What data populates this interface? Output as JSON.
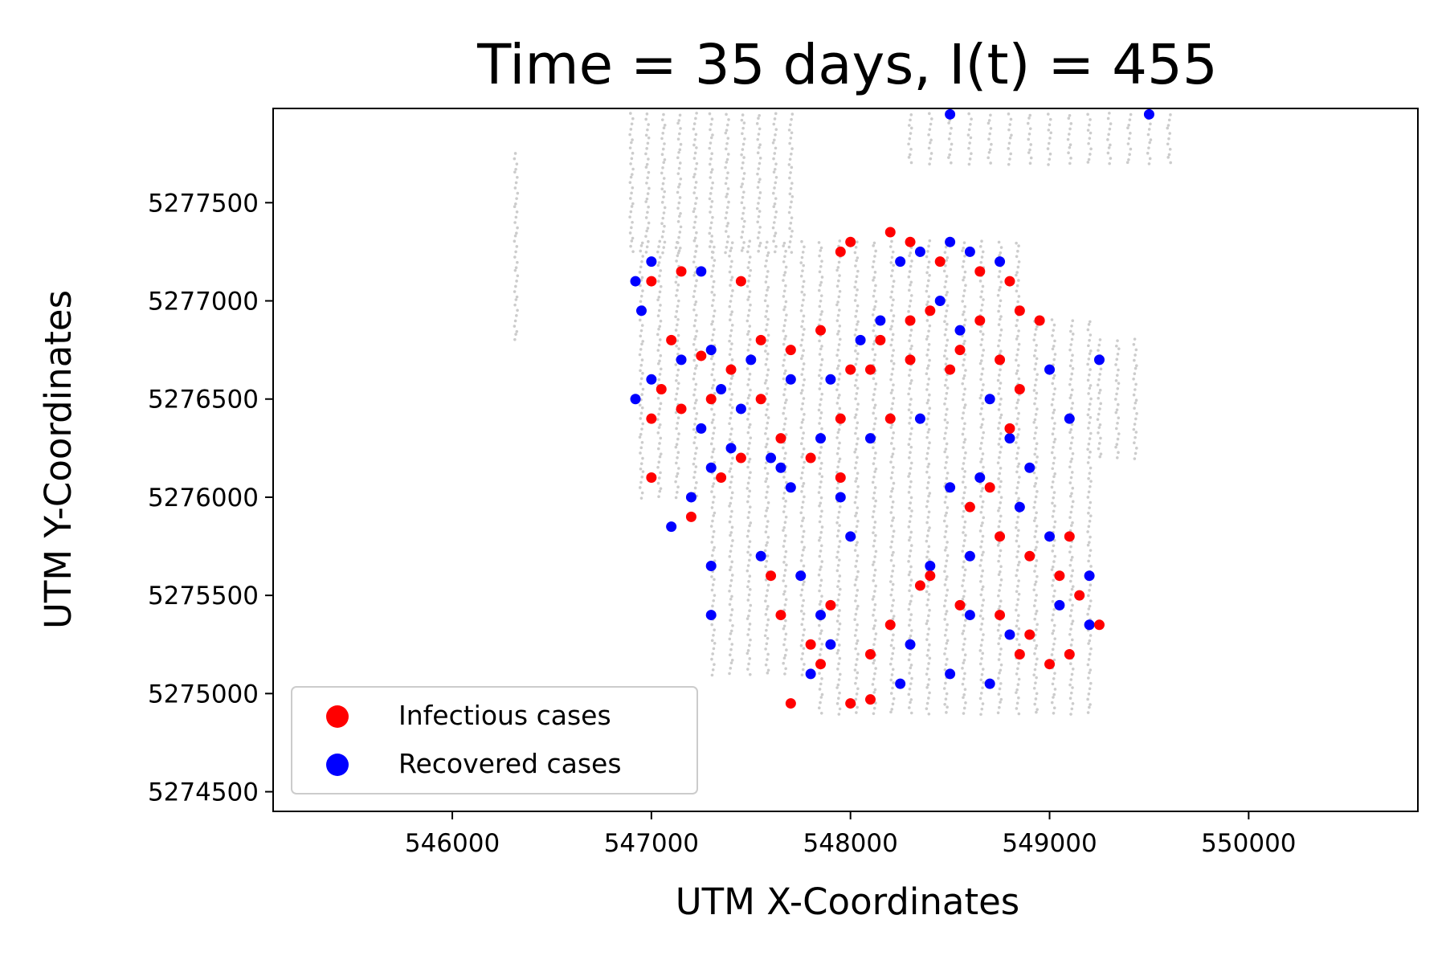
{
  "chart_data": {
    "type": "scatter",
    "title": "Time = 35 days, I(t) = 455",
    "xlabel": "UTM X-Coordinates",
    "ylabel": "UTM Y-Coordinates",
    "xlim": [
      545100,
      550850
    ],
    "ylim": [
      5274400,
      5277980
    ],
    "x_ticks": [
      546000,
      547000,
      548000,
      549000,
      550000
    ],
    "x_tick_labels": [
      "546000",
      "547000",
      "548000",
      "549000",
      "550000"
    ],
    "y_ticks": [
      5274500,
      5275000,
      5275500,
      5276000,
      5276500,
      5277000,
      5277500
    ],
    "y_tick_labels": [
      "5274500",
      "5275000",
      "5275500",
      "5276000",
      "5276500",
      "5277000",
      "5277500"
    ],
    "grid": false,
    "legend_position": "bottom-left",
    "colors": {
      "background_points": "#cccccc",
      "infectious": "#ff0000",
      "recovered": "#0000ff"
    },
    "series": [
      {
        "name": "Infectious cases",
        "color": "#ff0000",
        "points": [
          [
            547000,
            5277100
          ],
          [
            547150,
            5277150
          ],
          [
            547450,
            5277100
          ],
          [
            547100,
            5276800
          ],
          [
            547250,
            5276720
          ],
          [
            547400,
            5276650
          ],
          [
            547550,
            5276500
          ],
          [
            547650,
            5276300
          ],
          [
            547800,
            5276200
          ],
          [
            547450,
            5276200
          ],
          [
            547350,
            5276100
          ],
          [
            547000,
            5276100
          ],
          [
            547200,
            5275900
          ],
          [
            547600,
            5275600
          ],
          [
            547650,
            5275400
          ],
          [
            547900,
            5275450
          ],
          [
            547800,
            5275250
          ],
          [
            547700,
            5274950
          ],
          [
            547850,
            5275150
          ],
          [
            548100,
            5275200
          ],
          [
            548100,
            5274970
          ],
          [
            548200,
            5275350
          ],
          [
            548350,
            5275550
          ],
          [
            547950,
            5276100
          ],
          [
            547950,
            5276400
          ],
          [
            548000,
            5276650
          ],
          [
            548150,
            5276800
          ],
          [
            548300,
            5276900
          ],
          [
            548400,
            5276950
          ],
          [
            548550,
            5276750
          ],
          [
            548750,
            5276700
          ],
          [
            548850,
            5276550
          ],
          [
            548800,
            5276350
          ],
          [
            548700,
            5276050
          ],
          [
            548600,
            5275950
          ],
          [
            548750,
            5275800
          ],
          [
            548900,
            5275700
          ],
          [
            549050,
            5275600
          ],
          [
            549150,
            5275500
          ],
          [
            549250,
            5275350
          ],
          [
            549100,
            5275200
          ],
          [
            548900,
            5275300
          ],
          [
            548750,
            5275400
          ],
          [
            548550,
            5275450
          ],
          [
            548400,
            5275600
          ],
          [
            548850,
            5275200
          ],
          [
            549000,
            5275150
          ],
          [
            547950,
            5277250
          ],
          [
            548000,
            5277300
          ],
          [
            548200,
            5277350
          ],
          [
            548300,
            5277300
          ],
          [
            548450,
            5277200
          ],
          [
            548650,
            5277150
          ],
          [
            548800,
            5277100
          ],
          [
            548850,
            5276950
          ],
          [
            548950,
            5276900
          ],
          [
            548650,
            5276900
          ],
          [
            548500,
            5276650
          ],
          [
            548300,
            5276700
          ],
          [
            548100,
            5276650
          ],
          [
            547850,
            5276850
          ],
          [
            547700,
            5276750
          ],
          [
            547550,
            5276800
          ],
          [
            547300,
            5276500
          ],
          [
            547150,
            5276450
          ],
          [
            547050,
            5276550
          ],
          [
            547000,
            5276400
          ],
          [
            548000,
            5274950
          ],
          [
            549100,
            5275800
          ],
          [
            548200,
            5276400
          ]
        ]
      },
      {
        "name": "Recovered cases",
        "color": "#0000ff",
        "points": [
          [
            546920,
            5277100
          ],
          [
            547000,
            5277200
          ],
          [
            547250,
            5277150
          ],
          [
            547300,
            5276750
          ],
          [
            547350,
            5276550
          ],
          [
            547250,
            5276350
          ],
          [
            547300,
            5276150
          ],
          [
            547400,
            5276250
          ],
          [
            547600,
            5276200
          ],
          [
            547700,
            5276050
          ],
          [
            547200,
            5276000
          ],
          [
            547100,
            5275850
          ],
          [
            547300,
            5275650
          ],
          [
            547300,
            5275400
          ],
          [
            547550,
            5275700
          ],
          [
            547750,
            5275600
          ],
          [
            547850,
            5275400
          ],
          [
            547900,
            5275250
          ],
          [
            547800,
            5275100
          ],
          [
            548300,
            5275250
          ],
          [
            548250,
            5275050
          ],
          [
            548500,
            5275100
          ],
          [
            548700,
            5275050
          ],
          [
            548800,
            5275300
          ],
          [
            549050,
            5275450
          ],
          [
            549200,
            5275600
          ],
          [
            549000,
            5275800
          ],
          [
            548850,
            5275950
          ],
          [
            548650,
            5276100
          ],
          [
            548500,
            5276050
          ],
          [
            548800,
            5276300
          ],
          [
            549000,
            5276650
          ],
          [
            549250,
            5276700
          ],
          [
            549100,
            5276400
          ],
          [
            548900,
            5276150
          ],
          [
            548700,
            5276500
          ],
          [
            548550,
            5276850
          ],
          [
            548450,
            5277000
          ],
          [
            548350,
            5277250
          ],
          [
            548500,
            5277300
          ],
          [
            548600,
            5277250
          ],
          [
            548750,
            5277200
          ],
          [
            548250,
            5277200
          ],
          [
            548150,
            5276900
          ],
          [
            548050,
            5276800
          ],
          [
            547900,
            5276600
          ],
          [
            547700,
            5276600
          ],
          [
            547500,
            5276700
          ],
          [
            547450,
            5276450
          ],
          [
            547850,
            5276300
          ],
          [
            547950,
            5276000
          ],
          [
            548000,
            5275800
          ],
          [
            548400,
            5275650
          ],
          [
            548600,
            5275700
          ],
          [
            548600,
            5275400
          ],
          [
            549200,
            5275350
          ],
          [
            549500,
            5277950
          ],
          [
            548500,
            5277950
          ],
          [
            546920,
            5276500
          ],
          [
            547000,
            5276600
          ],
          [
            547150,
            5276700
          ],
          [
            546950,
            5276950
          ],
          [
            548350,
            5276400
          ],
          [
            548100,
            5276300
          ],
          [
            547650,
            5276150
          ]
        ]
      }
    ]
  }
}
